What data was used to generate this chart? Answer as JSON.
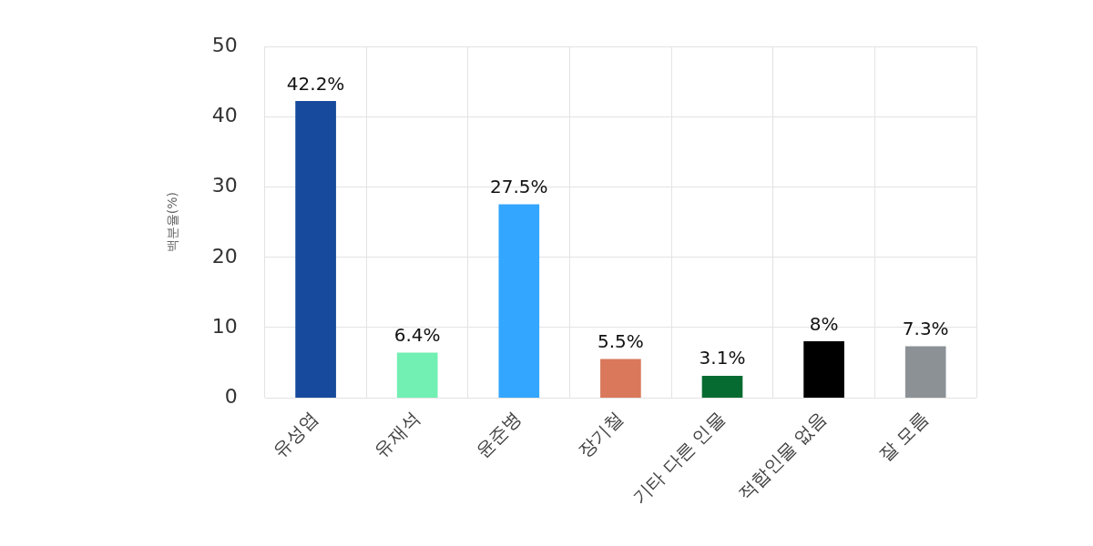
{
  "chart_data": {
    "type": "bar",
    "ylabel": "백분율(%)",
    "categories": [
      "유성엽",
      "유재석",
      "윤준병",
      "장기철",
      "기타 다른 인물",
      "적합인물 없음",
      "잘 모름"
    ],
    "values": [
      42.2,
      6.4,
      27.5,
      5.5,
      3.1,
      8,
      7.3
    ],
    "colors": [
      "#174a9c",
      "#72efb2",
      "#33a6ff",
      "#d9785a",
      "#066b31",
      "#000000",
      "#8c9196"
    ],
    "value_labels": [
      "42.2%",
      "6.4%",
      "27.5%",
      "5.5%",
      "3.1%",
      "8%",
      "7.3%"
    ],
    "ylim": [
      0,
      50
    ],
    "yticks": [
      0,
      10,
      20,
      30,
      40,
      50
    ],
    "grid": true
  }
}
